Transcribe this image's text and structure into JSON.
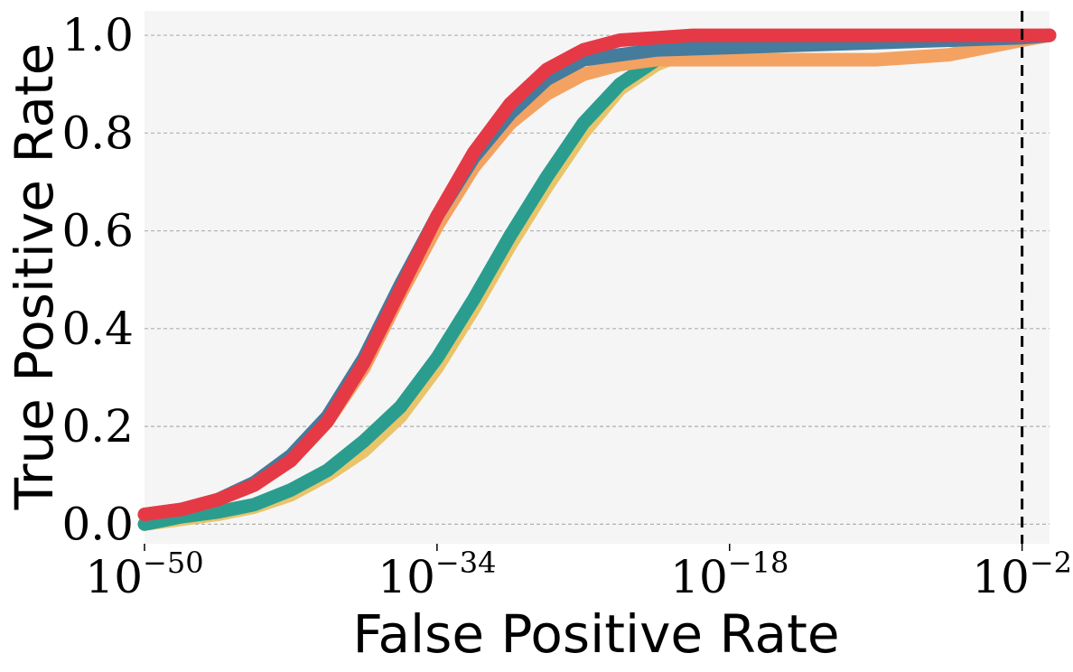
{
  "chart_data": {
    "type": "line",
    "xlabel": "False Positive Rate",
    "ylabel": "True Positive Rate",
    "xscale": "log",
    "xlim": [
      "1e-50",
      "1e-0.5"
    ],
    "ylim": [
      -0.04,
      1.05
    ],
    "x_ticks": [
      {
        "base": "10",
        "exp": "−50"
      },
      {
        "base": "10",
        "exp": "−34"
      },
      {
        "base": "10",
        "exp": "−18"
      },
      {
        "base": "10",
        "exp": "−2"
      }
    ],
    "y_ticks": [
      "0.0",
      "0.2",
      "0.4",
      "0.6",
      "0.8",
      "1.0"
    ],
    "grid": "horizontal dashed",
    "threshold_line": {
      "x": "1e-2",
      "style": "dashed",
      "color": "#000000"
    },
    "series": [
      {
        "color": "#e9c46a",
        "points": [
          [
            -50,
            0.0
          ],
          [
            -48,
            0.01
          ],
          [
            -46,
            0.02
          ],
          [
            -44,
            0.035
          ],
          [
            -42,
            0.06
          ],
          [
            -40,
            0.1
          ],
          [
            -38,
            0.15
          ],
          [
            -36,
            0.22
          ],
          [
            -34,
            0.32
          ],
          [
            -32,
            0.44
          ],
          [
            -30,
            0.57
          ],
          [
            -28,
            0.69
          ],
          [
            -26,
            0.8
          ],
          [
            -24,
            0.89
          ],
          [
            -22,
            0.94
          ],
          [
            -20,
            0.97
          ],
          [
            -18,
            0.98
          ],
          [
            -14,
            0.985
          ],
          [
            -10,
            0.99
          ],
          [
            -6,
            0.99
          ],
          [
            -2,
            0.995
          ],
          [
            -0.5,
            1.0
          ]
        ]
      },
      {
        "color": "#2a9d8f",
        "points": [
          [
            -50,
            0.0
          ],
          [
            -48,
            0.015
          ],
          [
            -46,
            0.025
          ],
          [
            -44,
            0.04
          ],
          [
            -42,
            0.07
          ],
          [
            -40,
            0.11
          ],
          [
            -38,
            0.17
          ],
          [
            -36,
            0.24
          ],
          [
            -34,
            0.34
          ],
          [
            -32,
            0.46
          ],
          [
            -30,
            0.59
          ],
          [
            -28,
            0.71
          ],
          [
            -26,
            0.82
          ],
          [
            -24,
            0.9
          ],
          [
            -22,
            0.95
          ],
          [
            -20,
            0.97
          ],
          [
            -18,
            0.98
          ],
          [
            -14,
            0.985
          ],
          [
            -10,
            0.99
          ],
          [
            -6,
            0.99
          ],
          [
            -2,
            0.995
          ],
          [
            -0.5,
            1.0
          ]
        ]
      },
      {
        "color": "#f4a261",
        "points": [
          [
            -50,
            0.02
          ],
          [
            -48,
            0.03
          ],
          [
            -46,
            0.05
          ],
          [
            -44,
            0.08
          ],
          [
            -42,
            0.13
          ],
          [
            -40,
            0.21
          ],
          [
            -38,
            0.32
          ],
          [
            -36,
            0.47
          ],
          [
            -34,
            0.61
          ],
          [
            -32,
            0.73
          ],
          [
            -30,
            0.82
          ],
          [
            -28,
            0.88
          ],
          [
            -26,
            0.92
          ],
          [
            -24,
            0.94
          ],
          [
            -22,
            0.95
          ],
          [
            -18,
            0.95
          ],
          [
            -14,
            0.95
          ],
          [
            -10,
            0.95
          ],
          [
            -6,
            0.96
          ],
          [
            -2,
            0.99
          ],
          [
            -0.5,
            1.0
          ]
        ]
      },
      {
        "color": "#457b9d",
        "points": [
          [
            -50,
            0.02
          ],
          [
            -48,
            0.03
          ],
          [
            -46,
            0.05
          ],
          [
            -44,
            0.085
          ],
          [
            -42,
            0.14
          ],
          [
            -40,
            0.22
          ],
          [
            -38,
            0.34
          ],
          [
            -36,
            0.49
          ],
          [
            -34,
            0.63
          ],
          [
            -32,
            0.75
          ],
          [
            -30,
            0.84
          ],
          [
            -28,
            0.91
          ],
          [
            -26,
            0.95
          ],
          [
            -24,
            0.96
          ],
          [
            -22,
            0.97
          ],
          [
            -18,
            0.975
          ],
          [
            -14,
            0.98
          ],
          [
            -10,
            0.985
          ],
          [
            -6,
            0.99
          ],
          [
            -2,
            0.995
          ],
          [
            -0.5,
            1.0
          ]
        ]
      },
      {
        "color": "#e63946",
        "points": [
          [
            -50,
            0.02
          ],
          [
            -48,
            0.03
          ],
          [
            -46,
            0.05
          ],
          [
            -44,
            0.08
          ],
          [
            -42,
            0.13
          ],
          [
            -40,
            0.21
          ],
          [
            -38,
            0.33
          ],
          [
            -36,
            0.48
          ],
          [
            -34,
            0.63
          ],
          [
            -32,
            0.76
          ],
          [
            -30,
            0.86
          ],
          [
            -28,
            0.93
          ],
          [
            -26,
            0.97
          ],
          [
            -24,
            0.99
          ],
          [
            -22,
            0.995
          ],
          [
            -20,
            1.0
          ],
          [
            -14,
            1.0
          ],
          [
            -6,
            1.0
          ],
          [
            -0.5,
            1.0
          ]
        ]
      }
    ]
  }
}
